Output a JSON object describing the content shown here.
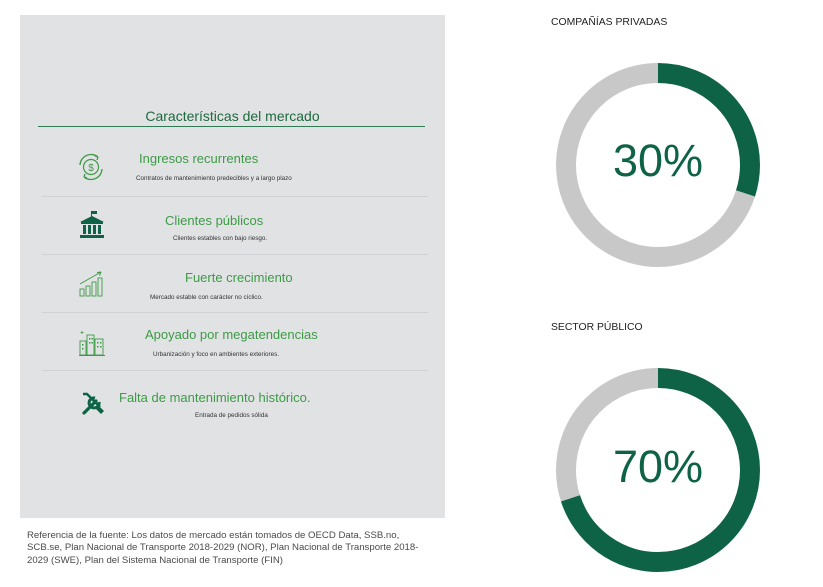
{
  "market": {
    "title": "Características del mercado",
    "items": [
      {
        "icon": "recurring-dollar-icon",
        "title": "Ingresos recurrentes",
        "desc": "Contratos de mantenimiento predecibles y a largo plazo"
      },
      {
        "icon": "government-building-icon",
        "title": "Clientes públicos",
        "desc": "Clientes estables con bajo riesgo."
      },
      {
        "icon": "growth-bars-icon",
        "title": "Fuerte crecimiento",
        "desc": "Mercado estable con carácter no cíclico."
      },
      {
        "icon": "city-buildings-icon",
        "title": "Apoyado por megatendencias",
        "desc": "Urbanización y foco en ambientes exteriores."
      },
      {
        "icon": "wrench-screwdriver-icon",
        "title": "Falta de mantenimiento histórico.",
        "desc": "Entrada de pedidos sólida"
      }
    ]
  },
  "footnote": "Referencia de la fuente: Los datos de mercado están tomados de OECD Data, SSB.no, SCB.se, Plan Nacional de Transporte 2018-2029 (NOR), Plan Nacional de Transporte 2018-2029 (SWE), Plan del Sistema Nacional de Transporte (FIN)",
  "colors": {
    "accent": "#0e6346",
    "remainder": "#c8c8c8",
    "title_green": "#3d9b46",
    "panel_bg": "#e1e2e4"
  },
  "chart_data": [
    {
      "type": "pie",
      "title": "COMPAÑÍAS PRIVADAS",
      "center_label": "30%",
      "categories": [
        "",
        ""
      ],
      "values": [
        30,
        70
      ],
      "colors": [
        "#0e6346",
        "#c8c8c8"
      ]
    },
    {
      "type": "pie",
      "title": "SECTOR PÚBLICO",
      "center_label": "70%",
      "categories": [
        "",
        ""
      ],
      "values": [
        70,
        30
      ],
      "colors": [
        "#0e6346",
        "#c8c8c8"
      ]
    }
  ]
}
